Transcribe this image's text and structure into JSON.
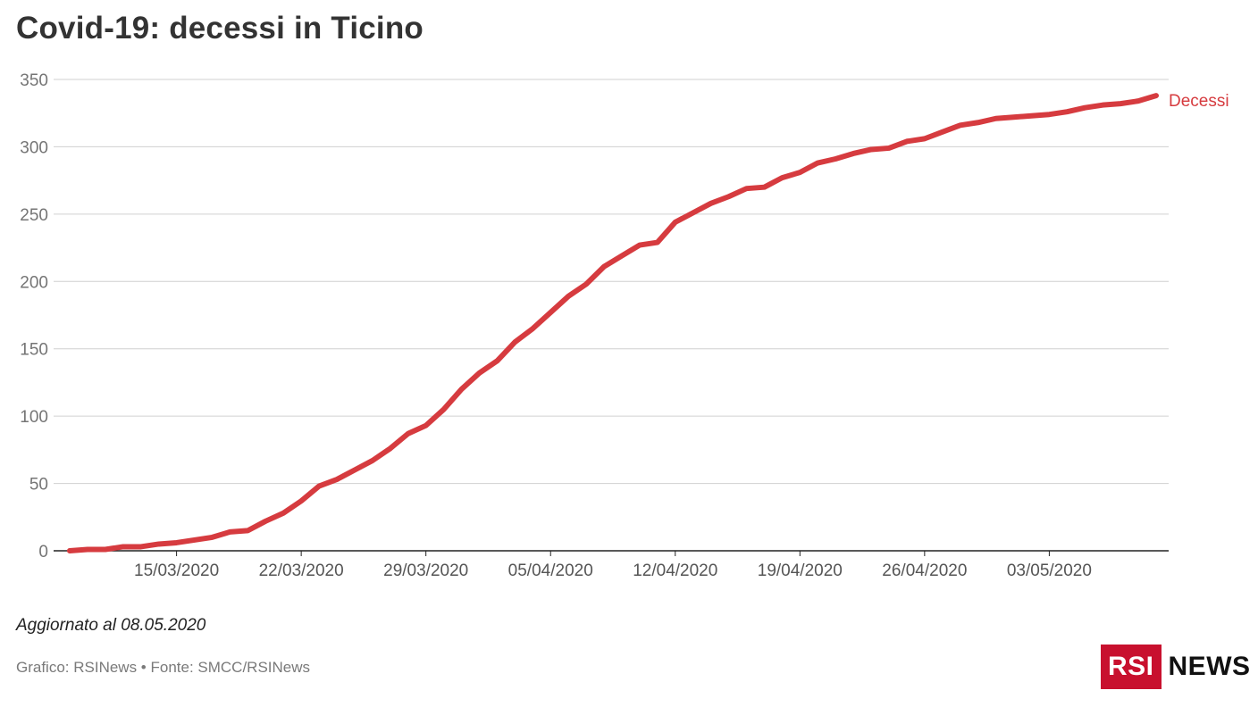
{
  "title": "Covid-19: decessi in Ticino",
  "note": "Aggiornato al 08.05.2020",
  "source": "Grafico: RSINews • Fonte: SMCC/RSINews",
  "logo": {
    "rsi": "RSI",
    "news": "NEWS",
    "brand_color": "#c8102e"
  },
  "chart_data": {
    "type": "line",
    "title": "Covid-19: decessi in Ticino",
    "xlabel": "",
    "ylabel": "",
    "ylim": [
      0,
      350
    ],
    "yticks": [
      0,
      50,
      100,
      150,
      200,
      250,
      300,
      350
    ],
    "xticks": [
      "15/03/2020",
      "22/03/2020",
      "29/03/2020",
      "05/04/2020",
      "12/04/2020",
      "19/04/2020",
      "26/04/2020",
      "03/05/2020"
    ],
    "xrange": [
      "2020-03-09",
      "2020-05-10"
    ],
    "grid": true,
    "series": [
      {
        "name": "Decessi",
        "color": "#d63b3f",
        "points": [
          [
            "2020-03-09",
            0
          ],
          [
            "2020-03-10",
            1
          ],
          [
            "2020-03-11",
            1
          ],
          [
            "2020-03-12",
            3
          ],
          [
            "2020-03-13",
            3
          ],
          [
            "2020-03-14",
            5
          ],
          [
            "2020-03-15",
            6
          ],
          [
            "2020-03-16",
            8
          ],
          [
            "2020-03-17",
            10
          ],
          [
            "2020-03-18",
            14
          ],
          [
            "2020-03-19",
            15
          ],
          [
            "2020-03-20",
            22
          ],
          [
            "2020-03-21",
            28
          ],
          [
            "2020-03-22",
            37
          ],
          [
            "2020-03-23",
            48
          ],
          [
            "2020-03-24",
            53
          ],
          [
            "2020-03-25",
            60
          ],
          [
            "2020-03-26",
            67
          ],
          [
            "2020-03-27",
            76
          ],
          [
            "2020-03-28",
            87
          ],
          [
            "2020-03-29",
            93
          ],
          [
            "2020-03-30",
            105
          ],
          [
            "2020-03-31",
            120
          ],
          [
            "2020-04-01",
            132
          ],
          [
            "2020-04-02",
            141
          ],
          [
            "2020-04-03",
            155
          ],
          [
            "2020-04-04",
            165
          ],
          [
            "2020-04-05",
            177
          ],
          [
            "2020-04-06",
            189
          ],
          [
            "2020-04-07",
            198
          ],
          [
            "2020-04-08",
            211
          ],
          [
            "2020-04-09",
            219
          ],
          [
            "2020-04-10",
            227
          ],
          [
            "2020-04-11",
            229
          ],
          [
            "2020-04-12",
            244
          ],
          [
            "2020-04-13",
            251
          ],
          [
            "2020-04-14",
            258
          ],
          [
            "2020-04-15",
            263
          ],
          [
            "2020-04-16",
            269
          ],
          [
            "2020-04-17",
            270
          ],
          [
            "2020-04-18",
            277
          ],
          [
            "2020-04-19",
            281
          ],
          [
            "2020-04-20",
            288
          ],
          [
            "2020-04-21",
            291
          ],
          [
            "2020-04-22",
            295
          ],
          [
            "2020-04-23",
            298
          ],
          [
            "2020-04-24",
            299
          ],
          [
            "2020-04-25",
            304
          ],
          [
            "2020-04-26",
            306
          ],
          [
            "2020-04-27",
            311
          ],
          [
            "2020-04-28",
            316
          ],
          [
            "2020-04-29",
            318
          ],
          [
            "2020-04-30",
            321
          ],
          [
            "2020-05-01",
            322
          ],
          [
            "2020-05-02",
            323
          ],
          [
            "2020-05-03",
            324
          ],
          [
            "2020-05-04",
            326
          ],
          [
            "2020-05-05",
            329
          ],
          [
            "2020-05-06",
            331
          ],
          [
            "2020-05-07",
            332
          ],
          [
            "2020-05-08",
            334
          ],
          [
            "2020-05-09",
            338
          ]
        ]
      }
    ],
    "series_label_placement": "end-of-line"
  }
}
